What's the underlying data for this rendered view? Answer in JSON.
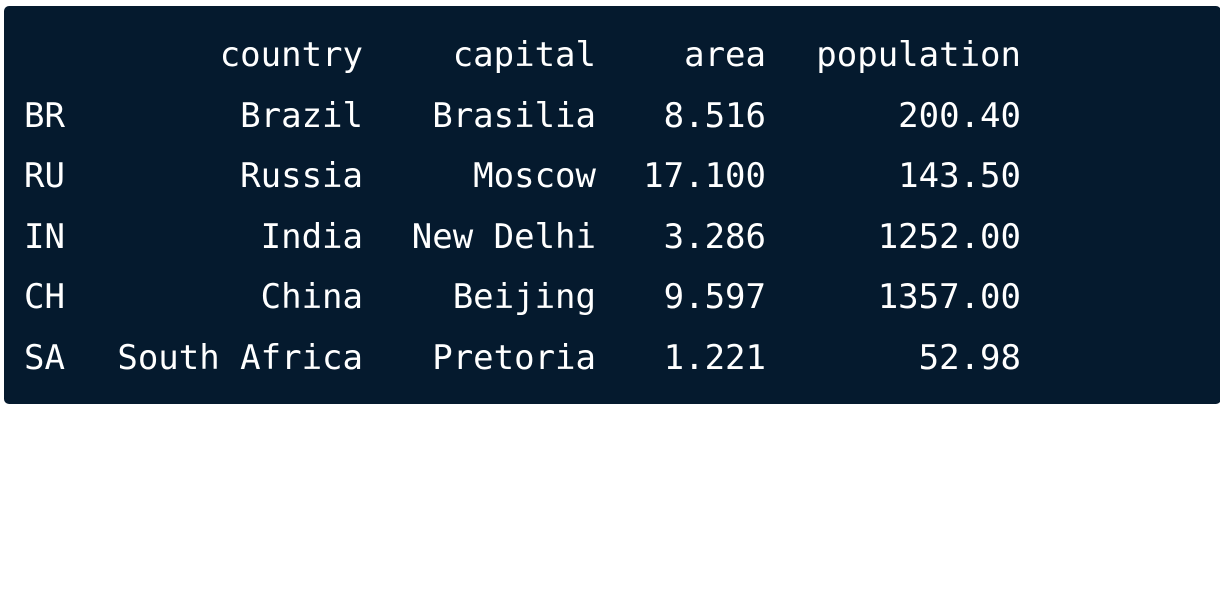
{
  "colors": {
    "background": "#051a2e",
    "text": "#ffffff"
  },
  "table": {
    "columns": [
      "country",
      "capital",
      "area",
      "population"
    ],
    "rows": [
      {
        "index": "BR",
        "country": "Brazil",
        "capital": "Brasilia",
        "area": "8.516",
        "population": "200.40"
      },
      {
        "index": "RU",
        "country": "Russia",
        "capital": "Moscow",
        "area": "17.100",
        "population": "143.50"
      },
      {
        "index": "IN",
        "country": "India",
        "capital": "New Delhi",
        "area": "3.286",
        "population": "1252.00"
      },
      {
        "index": "CH",
        "country": "China",
        "capital": "Beijing",
        "area": "9.597",
        "population": "1357.00"
      },
      {
        "index": "SA",
        "country": "South Africa",
        "capital": "Pretoria",
        "area": "1.221",
        "population": "52.98"
      }
    ]
  }
}
